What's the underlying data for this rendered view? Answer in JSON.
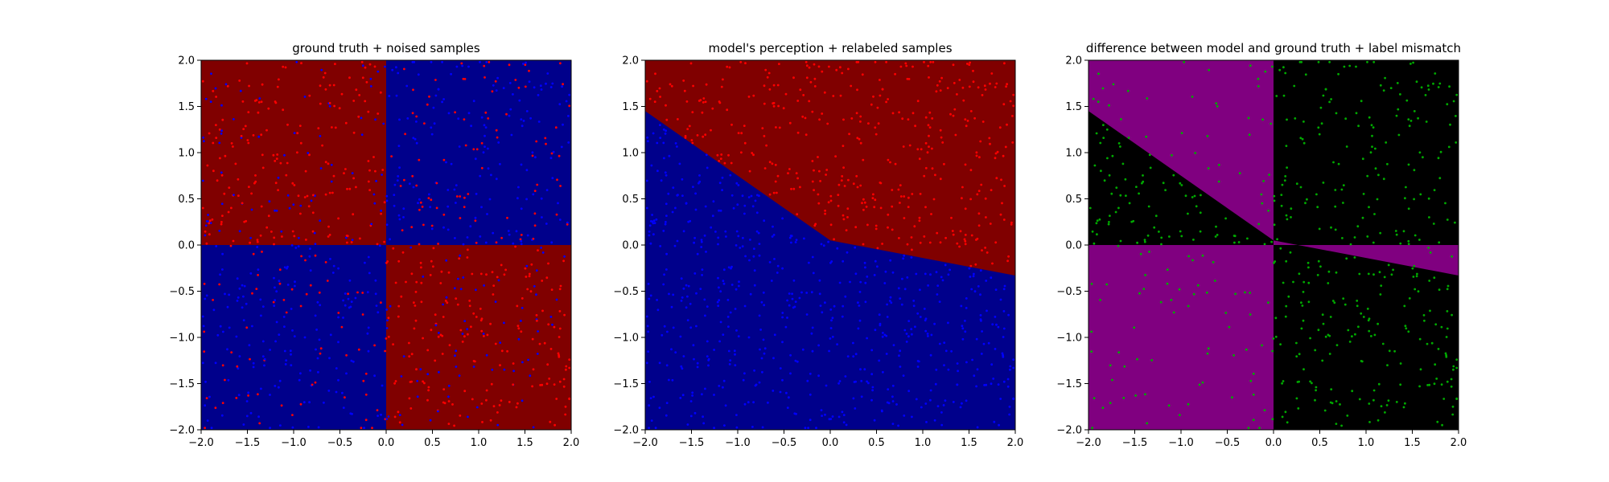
{
  "chart_data": [
    {
      "type": "scatter",
      "title": "ground truth + noised samples",
      "xlim": [
        -2.0,
        2.0
      ],
      "ylim": [
        -2.0,
        2.0
      ],
      "xticks": [
        "−2.0",
        "−1.5",
        "−1.0",
        "−0.5",
        "0.0",
        "0.5",
        "1.0",
        "1.5",
        "2.0"
      ],
      "yticks": [
        "2.0",
        "1.5",
        "1.0",
        "0.5",
        "0.0",
        "−0.5",
        "−1.0",
        "−1.5",
        "−2.0"
      ],
      "background": "quadrants: red where x<0,y>0 and x>0,y<0; blue where x>0,y>0 and x<0,y<0",
      "region_colors": {
        "red": "#800000",
        "blue": "#00008b"
      },
      "point_colors": {
        "red": "#ff0000",
        "blue": "#0000ff"
      },
      "samples": 1000
    },
    {
      "type": "scatter",
      "title": "model's perception + relabeled samples",
      "xlim": [
        -2.0,
        2.0
      ],
      "ylim": [
        -2.0,
        2.0
      ],
      "xticks": [
        "−2.0",
        "−1.5",
        "−1.0",
        "−0.5",
        "0.0",
        "0.5",
        "1.0",
        "1.5",
        "2.0"
      ],
      "yticks": [
        "2.0",
        "1.5",
        "1.0",
        "0.5",
        "0.0",
        "−0.5",
        "−1.0",
        "−1.5",
        "−2.0"
      ],
      "boundary": [
        [
          -2.0,
          1.45
        ],
        [
          0.0,
          0.05
        ],
        [
          2.0,
          -0.33
        ]
      ],
      "background": "red above boundary, blue below",
      "region_colors": {
        "red": "#800000",
        "blue": "#00008b"
      },
      "point_colors": {
        "red": "#ff0000",
        "blue": "#0000ff"
      },
      "samples": 1000
    },
    {
      "type": "scatter",
      "title": "difference between model and ground truth + label mismatch",
      "xlim": [
        -2.0,
        2.0
      ],
      "ylim": [
        -2.0,
        2.0
      ],
      "xticks": [
        "−2.0",
        "−1.5",
        "−1.0",
        "−0.5",
        "0.0",
        "0.5",
        "1.0",
        "1.5",
        "2.0"
      ],
      "yticks": [
        "2.0",
        "1.5",
        "1.0",
        "0.5",
        "0.0",
        "−0.5",
        "−1.0",
        "−1.5",
        "−2.0"
      ],
      "background": "purple where model and ground truth disagree, black where they agree",
      "region_colors": {
        "mismatch": "#800080",
        "match": "#000000"
      },
      "point_colors": {
        "mismatch": "#00aa00"
      },
      "samples": 1000
    }
  ]
}
